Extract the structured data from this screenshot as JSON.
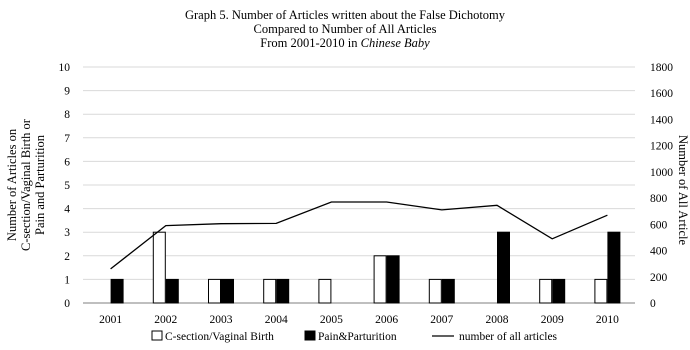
{
  "chart_data": {
    "type": "bar",
    "title_lines": [
      "Graph 5. Number of Articles written about the False Dichotomy",
      "Compared to Number of All Articles",
      "From 2001-2010 in "
    ],
    "title_italic": "Chinese Baby",
    "categories": [
      "2001",
      "2002",
      "2003",
      "2004",
      "2005",
      "2006",
      "2007",
      "2008",
      "2009",
      "2010"
    ],
    "series": [
      {
        "name": "C-section/Vaginal Birth",
        "kind": "bar",
        "axis": "left",
        "fill": "#ffffff",
        "stroke": "#000000",
        "values": [
          0,
          3,
          1,
          1,
          1,
          2,
          1,
          0,
          1,
          1
        ]
      },
      {
        "name": "Pain&Parturition",
        "kind": "bar",
        "axis": "left",
        "fill": "#000000",
        "stroke": "#000000",
        "values": [
          1,
          1,
          1,
          1,
          0,
          2,
          1,
          3,
          1,
          3
        ]
      },
      {
        "name": "number of all articles",
        "kind": "line",
        "axis": "right",
        "stroke": "#000000",
        "values": [
          260,
          590,
          605,
          607,
          770,
          770,
          710,
          745,
          490,
          670
        ]
      }
    ],
    "y_left": {
      "label_lines": [
        "Number of Articles on",
        "C-section/Vaginal Birth or",
        "Pain and Parturition"
      ],
      "ylim": [
        0,
        10
      ],
      "ticks": [
        "0",
        "1",
        "2",
        "3",
        "4",
        "5",
        "6",
        "7",
        "8",
        "9",
        "10"
      ]
    },
    "y_right": {
      "label": "Number of All Article",
      "ylim": [
        0,
        1800
      ],
      "ticks": [
        "0",
        "200",
        "400",
        "600",
        "800",
        "1000",
        "1200",
        "1400",
        "1600",
        "1800"
      ]
    },
    "grid": true,
    "legend_position": "bottom"
  }
}
